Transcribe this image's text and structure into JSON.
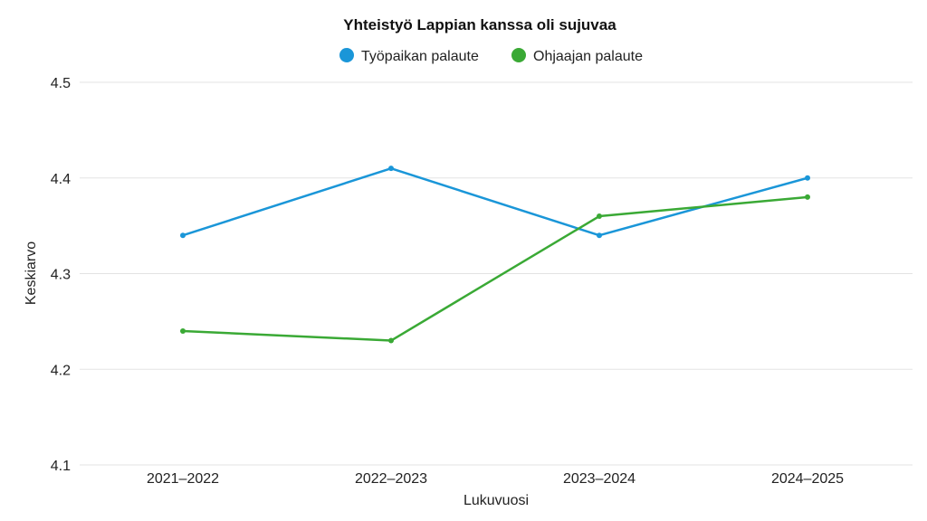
{
  "chart_data": {
    "type": "line",
    "title": "Yhteistyö Lappian kanssa oli sujuvaa",
    "xlabel": "Lukuvuosi",
    "ylabel": "Keskiarvo",
    "categories": [
      "2021–2022",
      "2022–2023",
      "2023–2024",
      "2024–2025"
    ],
    "ylim": [
      4.1,
      4.5
    ],
    "yticks": [
      "4.1",
      "4.2",
      "4.3",
      "4.4",
      "4.5"
    ],
    "grid": true,
    "legend_placement": "top-center",
    "series": [
      {
        "name": "Työpaikan palaute",
        "color": "#1a96d8",
        "values": [
          4.34,
          4.41,
          4.34,
          4.4
        ]
      },
      {
        "name": "Ohjaajan palaute",
        "color": "#3aa935",
        "values": [
          4.24,
          4.23,
          4.36,
          4.38
        ]
      }
    ]
  }
}
